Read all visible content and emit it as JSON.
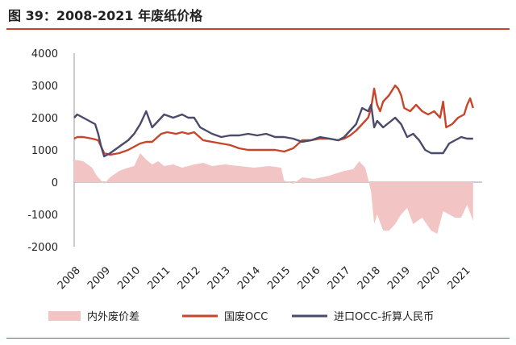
{
  "title": "图 39：2008-2021 年废纸价格",
  "colors": {
    "accent": "#c7462b",
    "guofei": "#c7462b",
    "import": "#4a4a6a",
    "diff": "#f2c4c4"
  },
  "chart_data": {
    "type": "line",
    "title": "图 39：2008-2021 年废纸价格",
    "xlabel": "",
    "ylabel": "",
    "ylim": [
      -2000,
      4000
    ],
    "xlim": [
      2008.0,
      2021.6
    ],
    "yticks": [
      "4000",
      "3000",
      "2000",
      "1000",
      "0",
      "-1000",
      "-2000"
    ],
    "xticks": [
      "2008",
      "2009",
      "2010",
      "2011",
      "2012",
      "2013",
      "2014",
      "2015",
      "2016",
      "2017",
      "2018",
      "2019",
      "2020",
      "2021"
    ],
    "legend_position": "bottom",
    "series": [
      {
        "name": "内外废价差",
        "style": "area",
        "x": [
          2008.0,
          2008.3,
          2008.6,
          2008.75,
          2008.85,
          2009.0,
          2009.2,
          2009.5,
          2009.8,
          2010.0,
          2010.2,
          2010.4,
          2010.6,
          2010.8,
          2011.0,
          2011.3,
          2011.6,
          2012.0,
          2012.3,
          2012.6,
          2013.0,
          2013.5,
          2014.0,
          2014.5,
          2014.9,
          2015.0,
          2015.3,
          2015.6,
          2016.0,
          2016.5,
          2017.0,
          2017.3,
          2017.5,
          2017.7,
          2017.8,
          2017.9,
          2018.0,
          2018.1,
          2018.3,
          2018.5,
          2018.7,
          2018.9,
          2019.1,
          2019.3,
          2019.6,
          2019.9,
          2020.1,
          2020.3,
          2020.5,
          2020.7,
          2020.9,
          2021.1,
          2021.3
        ],
        "values": [
          700,
          650,
          450,
          200,
          100,
          -50,
          150,
          350,
          450,
          500,
          900,
          700,
          550,
          650,
          500,
          550,
          450,
          550,
          600,
          500,
          550,
          500,
          450,
          500,
          450,
          50,
          -50,
          150,
          100,
          200,
          350,
          400,
          650,
          450,
          100,
          -300,
          -1300,
          -1000,
          -1500,
          -1500,
          -1300,
          -1000,
          -800,
          -1300,
          -1100,
          -1500,
          -1600,
          -900,
          -1000,
          -1100,
          -1100,
          -700,
          -1200
        ]
      },
      {
        "name": "国废OCC",
        "style": "line",
        "x": [
          2008.0,
          2008.1,
          2008.3,
          2008.6,
          2008.8,
          2009.0,
          2009.2,
          2009.5,
          2009.8,
          2010.0,
          2010.2,
          2010.4,
          2010.6,
          2010.9,
          2011.1,
          2011.4,
          2011.6,
          2011.8,
          2012.0,
          2012.3,
          2012.6,
          2012.9,
          2013.2,
          2013.5,
          2013.8,
          2014.1,
          2014.4,
          2014.7,
          2015.0,
          2015.3,
          2015.6,
          2015.9,
          2016.2,
          2016.5,
          2016.8,
          2017.0,
          2017.2,
          2017.4,
          2017.6,
          2017.8,
          2017.9,
          2018.0,
          2018.1,
          2018.2,
          2018.3,
          2018.5,
          2018.7,
          2018.8,
          2018.9,
          2019.0,
          2019.2,
          2019.4,
          2019.6,
          2019.8,
          2020.0,
          2020.2,
          2020.3,
          2020.4,
          2020.6,
          2020.8,
          2021.0,
          2021.1,
          2021.2,
          2021.3
        ],
        "values": [
          1350,
          1400,
          1400,
          1350,
          1300,
          900,
          850,
          900,
          1000,
          1100,
          1200,
          1250,
          1250,
          1500,
          1550,
          1500,
          1550,
          1500,
          1550,
          1300,
          1250,
          1200,
          1150,
          1050,
          1000,
          1000,
          1000,
          1000,
          950,
          1050,
          1300,
          1300,
          1350,
          1350,
          1300,
          1350,
          1450,
          1600,
          1800,
          2000,
          2300,
          2900,
          2400,
          2200,
          2500,
          2700,
          3000,
          2900,
          2700,
          2300,
          2200,
          2400,
          2200,
          2100,
          2200,
          2000,
          2500,
          1700,
          1800,
          2000,
          2100,
          2400,
          2600,
          2300
        ]
      },
      {
        "name": "进口OCC-折算人民币",
        "style": "line",
        "x": [
          2008.0,
          2008.1,
          2008.3,
          2008.5,
          2008.7,
          2008.8,
          2008.9,
          2009.0,
          2009.2,
          2009.5,
          2009.8,
          2010.0,
          2010.2,
          2010.4,
          2010.6,
          2010.8,
          2011.0,
          2011.3,
          2011.6,
          2011.8,
          2012.0,
          2012.2,
          2012.4,
          2012.6,
          2012.9,
          2013.2,
          2013.5,
          2013.8,
          2014.1,
          2014.4,
          2014.7,
          2015.0,
          2015.3,
          2015.6,
          2015.9,
          2016.2,
          2016.5,
          2016.8,
          2017.0,
          2017.2,
          2017.4,
          2017.6,
          2017.8,
          2017.9,
          2018.0,
          2018.1,
          2018.3,
          2018.5,
          2018.7,
          2018.9,
          2019.1,
          2019.3,
          2019.5,
          2019.7,
          2019.9,
          2020.1,
          2020.3,
          2020.5,
          2020.7,
          2020.9,
          2021.1,
          2021.3
        ],
        "values": [
          2000,
          2100,
          2000,
          1900,
          1800,
          1500,
          1100,
          800,
          900,
          1100,
          1300,
          1500,
          1800,
          2200,
          1700,
          1900,
          2100,
          2000,
          2100,
          2000,
          2000,
          1700,
          1600,
          1500,
          1400,
          1450,
          1450,
          1500,
          1450,
          1500,
          1400,
          1400,
          1350,
          1250,
          1300,
          1400,
          1350,
          1300,
          1400,
          1600,
          1800,
          2300,
          2200,
          2400,
          1700,
          1900,
          1700,
          1850,
          2000,
          1800,
          1400,
          1500,
          1300,
          1000,
          900,
          900,
          900,
          1200,
          1300,
          1400,
          1350,
          1350
        ]
      }
    ]
  }
}
